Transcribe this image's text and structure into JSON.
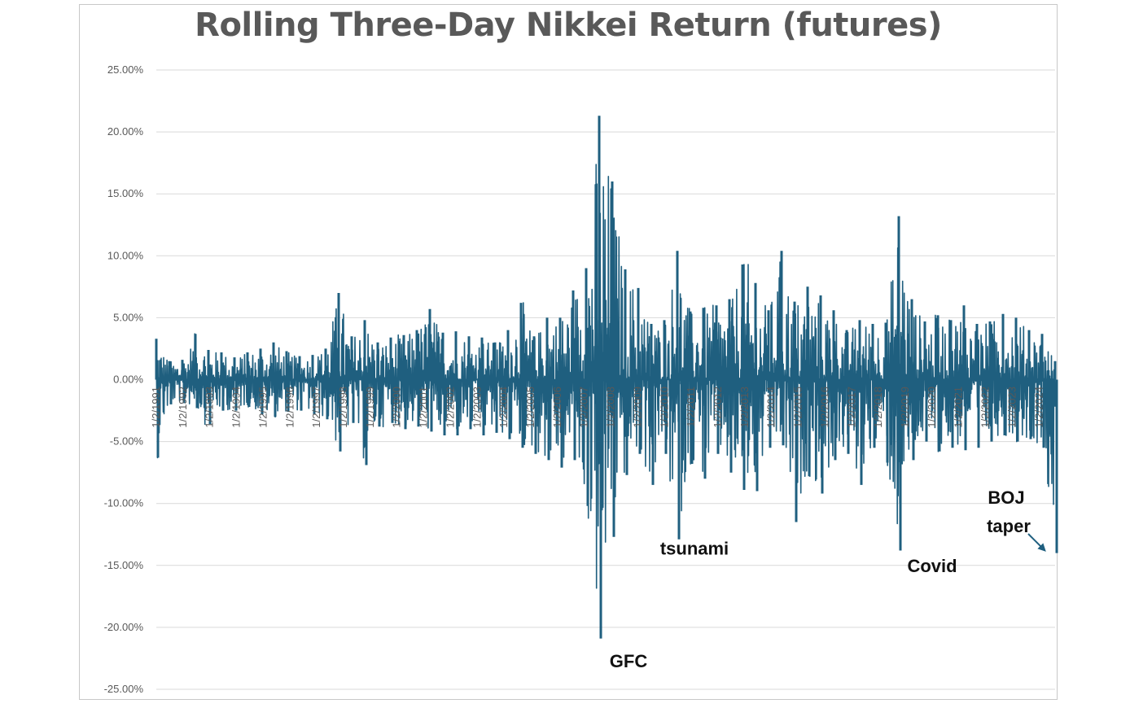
{
  "chart_data": {
    "type": "line",
    "title": "Rolling Three-Day Nikkei Return (futures)",
    "xlabel": "",
    "ylabel": "",
    "ylim": [
      -25,
      25
    ],
    "yticks": [
      "25.00%",
      "20.00%",
      "15.00%",
      "10.00%",
      "5.00%",
      "0.00%",
      "-5.00%",
      "-10.00%",
      "-15.00%",
      "-20.00%",
      "-25.00%"
    ],
    "yticks_values": [
      25,
      20,
      15,
      10,
      5,
      0,
      -5,
      -10,
      -15,
      -20,
      -25
    ],
    "xticks": [
      "1/2/1991",
      "1/2/1992",
      "1/2/1993",
      "1/2/1994",
      "1/2/1995",
      "1/2/1996",
      "1/2/1997",
      "1/2/1998",
      "1/2/1999",
      "1/2/2000",
      "1/2/2001",
      "1/2/2002",
      "1/2/2003",
      "1/2/2004",
      "1/2/2005",
      "1/2/2006",
      "1/2/2007",
      "1/2/2008",
      "1/2/2009",
      "1/2/2010",
      "1/2/2011",
      "1/2/2012",
      "1/2/2013",
      "1/2/2014",
      "1/2/2015",
      "1/2/2016",
      "1/2/2017",
      "1/2/2018",
      "1/2/2019",
      "1/2/2020",
      "1/2/2021",
      "1/2/2022",
      "1/2/2023",
      "1/2/2024"
    ],
    "grid": true,
    "line_color": "#1f5f7f",
    "series": [
      {
        "x_range": [
          "1/2/1991",
          "8/2024"
        ],
        "envelope_upper_pct": [
          3.3,
          1.5,
          1.6,
          3.7,
          2.4,
          2.2,
          1.8,
          2.2,
          2.5,
          3.0,
          2.3,
          1.9,
          2.0,
          2.5,
          7.0,
          3.5,
          4.8,
          3.0,
          3.4,
          3.6,
          4.0,
          5.7,
          3.8,
          3.9,
          3.5,
          3.4,
          3.0,
          4.0,
          6.2,
          3.5,
          5.0,
          5.0,
          7.2,
          9.0,
          21.3,
          16.0,
          8.9,
          7.4,
          4.5,
          4.8,
          10.4,
          5.5,
          5.8,
          6.0,
          6.5,
          9.3,
          7.8,
          5.6,
          10.4,
          6.3,
          7.5,
          6.8,
          5.6,
          4.0,
          4.8,
          4.5,
          4.6,
          13.2,
          6.5,
          4.7,
          5.2,
          4.8,
          6.0,
          4.5,
          4.7,
          5.3,
          5.0,
          4.0,
          3.7,
          1.5
        ],
        "envelope_lower_pct": [
          -6.3,
          -2.0,
          -1.9,
          -2.3,
          -3.6,
          -2.5,
          -2.5,
          -2.2,
          -2.8,
          -3.0,
          -2.6,
          -2.5,
          -2.8,
          -3.2,
          -5.8,
          -3.5,
          -6.9,
          -3.8,
          -3.5,
          -4.0,
          -3.8,
          -4.2,
          -4.5,
          -4.5,
          -4.0,
          -4.5,
          -4.3,
          -4.8,
          -5.5,
          -6.0,
          -6.5,
          -7.1,
          -6.5,
          -10.2,
          -20.9,
          -12.7,
          -7.7,
          -6.0,
          -8.5,
          -6.0,
          -12.9,
          -6.8,
          -8.0,
          -6.0,
          -7.5,
          -8.9,
          -9.0,
          -5.5,
          -5.3,
          -11.5,
          -7.8,
          -9.2,
          -6.5,
          -6.0,
          -8.5,
          -5.5,
          -6.7,
          -13.8,
          -6.5,
          -5.0,
          -5.8,
          -5.5,
          -5.7,
          -5.5,
          -5.0,
          -4.5,
          -5.0,
          -4.8,
          -5.5,
          -14.0
        ]
      }
    ],
    "annotations": [
      {
        "text": "GFC",
        "x": "2008",
        "y": -22.7
      },
      {
        "text": "tsunami",
        "x": "2011",
        "y": -13.6
      },
      {
        "text": "Covid",
        "x": "2020",
        "y": -15.0
      },
      {
        "text": "BOJ",
        "x": "2023",
        "y": -9.5
      },
      {
        "text": "taper",
        "x": "2023",
        "y": -11.8
      }
    ]
  }
}
